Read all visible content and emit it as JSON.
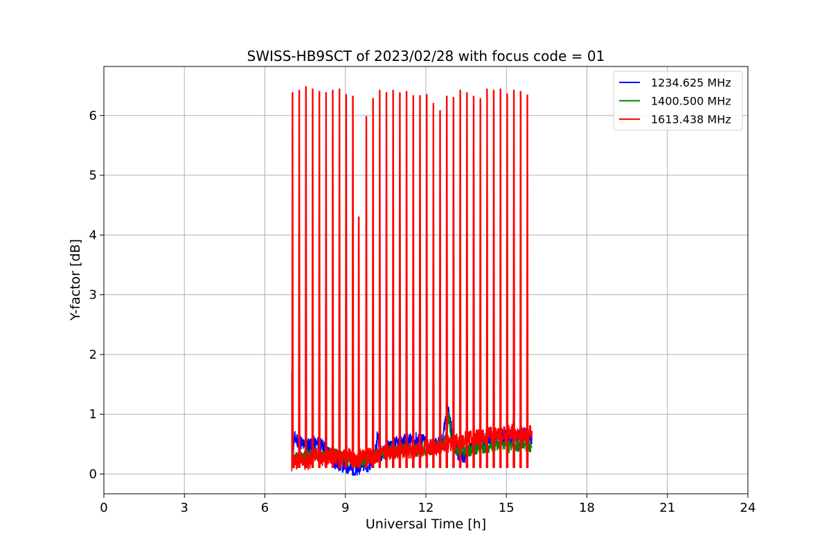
{
  "chart_data": {
    "type": "line",
    "title": "SWISS-HB9SCT of 2023/02/28 with focus code = 01",
    "xlabel": "Universal Time [h]",
    "ylabel": "Y-factor [dB]",
    "xlim": [
      0,
      24
    ],
    "ylim": [
      -0.33,
      6.82
    ],
    "x_ticks": [
      0,
      3,
      6,
      9,
      12,
      15,
      18,
      21,
      24
    ],
    "y_ticks": [
      0,
      1,
      2,
      3,
      4,
      5,
      6
    ],
    "grid": true,
    "legend_position": "top-right",
    "series": [
      {
        "name": "1234.625 MHz",
        "color": "#0000ff",
        "points": [
          [
            7.0,
            0.1
          ],
          [
            7.1,
            0.6
          ],
          [
            7.3,
            0.55
          ],
          [
            7.5,
            0.45
          ],
          [
            7.7,
            0.5
          ],
          [
            8.0,
            0.5
          ],
          [
            8.3,
            0.4
          ],
          [
            8.6,
            0.2
          ],
          [
            8.9,
            0.15
          ],
          [
            9.2,
            0.1
          ],
          [
            9.4,
            0.0
          ],
          [
            9.6,
            0.2
          ],
          [
            9.9,
            0.15
          ],
          [
            10.1,
            0.3
          ],
          [
            10.2,
            0.65
          ],
          [
            10.3,
            0.3
          ],
          [
            10.6,
            0.45
          ],
          [
            10.9,
            0.5
          ],
          [
            11.2,
            0.55
          ],
          [
            11.5,
            0.55
          ],
          [
            11.8,
            0.6
          ],
          [
            12.1,
            0.45
          ],
          [
            12.4,
            0.5
          ],
          [
            12.6,
            0.55
          ],
          [
            12.8,
            1.1
          ],
          [
            12.9,
            0.9
          ],
          [
            13.0,
            0.6
          ],
          [
            13.2,
            0.35
          ],
          [
            13.4,
            0.3
          ],
          [
            13.6,
            0.4
          ],
          [
            14.0,
            0.55
          ],
          [
            14.4,
            0.6
          ],
          [
            14.8,
            0.65
          ],
          [
            15.2,
            0.6
          ],
          [
            15.6,
            0.65
          ],
          [
            15.95,
            0.6
          ]
        ]
      },
      {
        "name": "1400.500 MHz",
        "color": "#008000",
        "points": [
          [
            7.0,
            0.2
          ],
          [
            7.3,
            0.3
          ],
          [
            7.6,
            0.3
          ],
          [
            7.9,
            0.35
          ],
          [
            8.2,
            0.3
          ],
          [
            8.5,
            0.4
          ],
          [
            8.8,
            0.3
          ],
          [
            9.1,
            0.25
          ],
          [
            9.4,
            0.2
          ],
          [
            9.7,
            0.25
          ],
          [
            10.0,
            0.3
          ],
          [
            10.4,
            0.35
          ],
          [
            10.8,
            0.4
          ],
          [
            11.2,
            0.4
          ],
          [
            11.6,
            0.4
          ],
          [
            12.0,
            0.4
          ],
          [
            12.4,
            0.45
          ],
          [
            12.7,
            0.5
          ],
          [
            12.85,
            0.95
          ],
          [
            13.0,
            0.45
          ],
          [
            13.3,
            0.4
          ],
          [
            13.6,
            0.4
          ],
          [
            14.0,
            0.45
          ],
          [
            14.4,
            0.45
          ],
          [
            14.8,
            0.5
          ],
          [
            15.2,
            0.45
          ],
          [
            15.6,
            0.5
          ],
          [
            15.95,
            0.45
          ]
        ]
      },
      {
        "name": "1613.438 MHz",
        "color": "#ff0000",
        "points": [
          [
            7.0,
            0.15
          ],
          [
            7.3,
            0.25
          ],
          [
            7.6,
            0.2
          ],
          [
            7.9,
            0.3
          ],
          [
            8.2,
            0.25
          ],
          [
            8.5,
            0.3
          ],
          [
            8.8,
            0.25
          ],
          [
            9.1,
            0.3
          ],
          [
            9.4,
            0.25
          ],
          [
            9.7,
            0.3
          ],
          [
            10.0,
            0.3
          ],
          [
            10.4,
            0.35
          ],
          [
            10.8,
            0.35
          ],
          [
            11.2,
            0.4
          ],
          [
            11.6,
            0.4
          ],
          [
            12.0,
            0.45
          ],
          [
            12.4,
            0.45
          ],
          [
            12.8,
            0.5
          ],
          [
            13.2,
            0.55
          ],
          [
            13.6,
            0.6
          ],
          [
            14.0,
            0.6
          ],
          [
            14.4,
            0.65
          ],
          [
            14.8,
            0.65
          ],
          [
            15.2,
            0.7
          ],
          [
            15.6,
            0.65
          ],
          [
            15.95,
            0.7
          ]
        ],
        "spikes": [
          [
            7.03,
            6.38
          ],
          [
            7.28,
            6.42
          ],
          [
            7.53,
            6.48
          ],
          [
            7.78,
            6.44
          ],
          [
            8.03,
            6.4
          ],
          [
            8.28,
            6.38
          ],
          [
            8.53,
            6.42
          ],
          [
            8.78,
            6.44
          ],
          [
            9.03,
            6.35
          ],
          [
            9.28,
            6.32
          ],
          [
            9.5,
            4.3
          ],
          [
            9.78,
            5.98
          ],
          [
            10.03,
            6.28
          ],
          [
            10.28,
            6.42
          ],
          [
            10.53,
            6.38
          ],
          [
            10.78,
            6.42
          ],
          [
            11.03,
            6.38
          ],
          [
            11.28,
            6.4
          ],
          [
            11.53,
            6.33
          ],
          [
            11.78,
            6.33
          ],
          [
            12.03,
            6.35
          ],
          [
            12.28,
            6.2
          ],
          [
            12.53,
            6.08
          ],
          [
            12.78,
            6.32
          ],
          [
            13.03,
            6.3
          ],
          [
            13.28,
            6.42
          ],
          [
            13.53,
            6.38
          ],
          [
            13.78,
            6.32
          ],
          [
            14.03,
            6.28
          ],
          [
            14.28,
            6.44
          ],
          [
            14.53,
            6.42
          ],
          [
            14.78,
            6.44
          ],
          [
            15.03,
            6.36
          ],
          [
            15.28,
            6.42
          ],
          [
            15.53,
            6.4
          ],
          [
            15.78,
            6.34
          ]
        ]
      }
    ]
  }
}
